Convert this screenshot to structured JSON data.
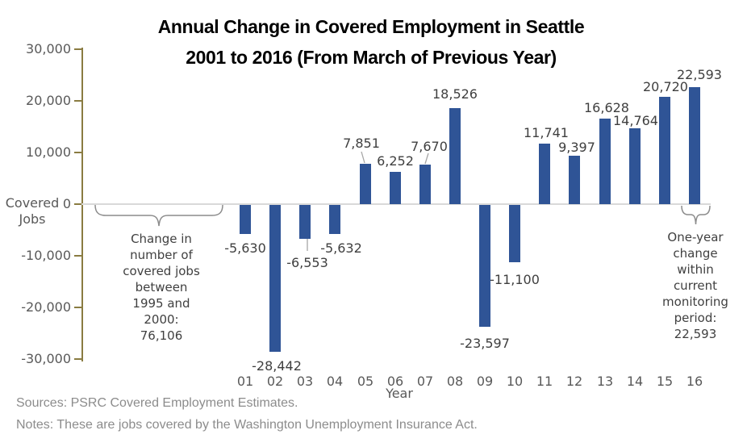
{
  "title": {
    "line1": "Annual Change in Covered Employment in Seattle",
    "line2": "2001 to 2016 (From March of Previous Year)"
  },
  "y_axis": {
    "label_line1": "Covered",
    "label_line2": "Jobs",
    "ticks": [
      "30,000",
      "20,000",
      "10,000",
      "0",
      "-10,000",
      "-20,000",
      "-30,000"
    ]
  },
  "x_axis": {
    "label": "Year"
  },
  "chart_data": {
    "type": "bar",
    "title": "Annual Change in Covered Employment in Seattle 2001 to 2016 (From March of Previous Year)",
    "xlabel": "Year",
    "ylabel": "Covered Jobs",
    "ylim": [
      -30000,
      30000
    ],
    "y_tick_step": 10000,
    "grid": false,
    "legend": false,
    "bar_color": "#2F5496",
    "categories": [
      "01",
      "02",
      "03",
      "04",
      "05",
      "06",
      "07",
      "08",
      "09",
      "10",
      "11",
      "12",
      "13",
      "14",
      "15",
      "16"
    ],
    "values": [
      -5630,
      -28442,
      -6553,
      -5632,
      7851,
      6252,
      7670,
      18526,
      -23597,
      -11100,
      11741,
      9397,
      16628,
      14764,
      20720,
      22593
    ],
    "data_labels": [
      "-5,630",
      "-28,442",
      "-6,553",
      "-5,632",
      "7,851",
      "6,252",
      "7,670",
      "18,526",
      "-23,597",
      "-11,100",
      "11,741",
      "9,397",
      "16,628",
      "14,764",
      "20,720",
      "22,593"
    ]
  },
  "annotations": {
    "left": {
      "lines": [
        "Change in",
        "number of",
        "covered jobs",
        "between",
        "1995 and",
        "2000:",
        "76,106"
      ],
      "value": "76,106"
    },
    "right": {
      "lines": [
        "One-year",
        "change",
        "within",
        "current",
        "monitoring",
        "period:",
        "22,593"
      ],
      "value": "22,593"
    }
  },
  "footer": {
    "sources": "Sources: PSRC Covered Employment Estimates.",
    "notes": "Notes: These are jobs covered by the Washington Unemployment Insurance Act."
  },
  "colors": {
    "bar": "#2F5496",
    "axis_line": "#8A7C42",
    "baseline": "#D9D9D9",
    "tick_text": "#595959",
    "data_label_text": "#3F3F3F",
    "annotation_text": "#404040",
    "brace": "#8C8C8C",
    "leader_line": "#A6A6A6",
    "footer_text": "#8C8C8C",
    "title_text": "#000000"
  }
}
